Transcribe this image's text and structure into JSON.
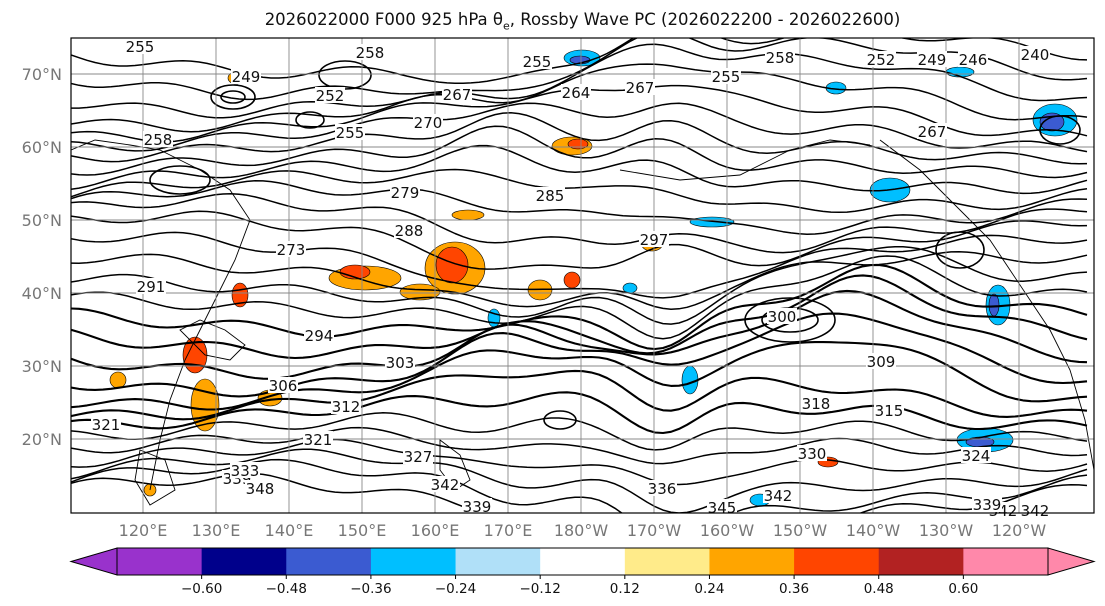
{
  "title": "2026022000 F000 925 hPa θ",
  "title_sub": "e",
  "title_rest": ", Rossby Wave PC (2026022200 - 2026022600)",
  "lat_labels": [
    "70°N",
    "60°N",
    "50°N",
    "40°N",
    "30°N",
    "20°N"
  ],
  "lon_labels": [
    "120°E",
    "130°E",
    "140°E",
    "150°E",
    "160°E",
    "170°E",
    "180°W",
    "170°W",
    "160°W",
    "150°W",
    "140°W",
    "130°W",
    "120°W"
  ],
  "contour_labels": [
    "255",
    "258",
    "258",
    "255",
    "252",
    "249",
    "246",
    "240",
    "249",
    "252",
    "267",
    "264",
    "267",
    "255",
    "255",
    "258",
    "270",
    "267",
    "279",
    "285",
    "288",
    "273",
    "291",
    "294",
    "303",
    "300",
    "306",
    "309",
    "312",
    "315",
    "318",
    "321",
    "321",
    "324",
    "327",
    "330",
    "336",
    "339",
    "339",
    "342",
    "342",
    "345",
    "342",
    "339",
    "333",
    "348",
    "342",
    "297"
  ],
  "colorbar": {
    "ticks": [
      "−0.60",
      "−0.48",
      "−0.36",
      "−0.24",
      "−0.12",
      "0.12",
      "0.24",
      "0.36",
      "0.48",
      "0.60"
    ],
    "colors": [
      "#9932cc",
      "#00008b",
      "#3b5bd1",
      "#00bfff",
      "#b0e0f8",
      "#ffffff",
      "#ffeb8a",
      "#ffa500",
      "#ff4500",
      "#b22222",
      "#ff88aa"
    ]
  },
  "colors": {
    "contour": "#000000",
    "coast": "#000000",
    "grid": "#888888",
    "axis_text": "#777777"
  }
}
